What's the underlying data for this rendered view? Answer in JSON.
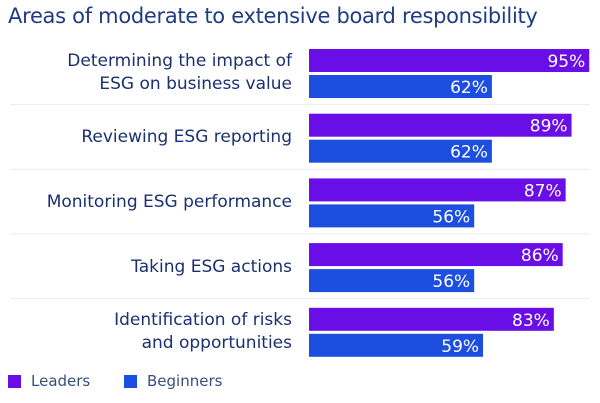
{
  "chart_data": {
    "type": "bar",
    "orientation": "horizontal",
    "title": "Areas of moderate to extensive board responsibility",
    "categories": [
      [
        "Determining the impact of",
        "ESG on business value"
      ],
      [
        "Reviewing ESG reporting"
      ],
      [
        "Monitoring ESG performance"
      ],
      [
        "Taking ESG actions"
      ],
      [
        "Identification of risks",
        "and opportunities"
      ]
    ],
    "series": [
      {
        "name": "Leaders",
        "color": "#6a0ee8",
        "values": [
          95,
          89,
          87,
          86,
          83
        ]
      },
      {
        "name": "Beginners",
        "color": "#1c4fe0",
        "values": [
          62,
          62,
          56,
          56,
          59
        ]
      }
    ],
    "xlim": [
      0,
      100
    ],
    "value_suffix": "%",
    "legend_position": "bottom-left"
  }
}
